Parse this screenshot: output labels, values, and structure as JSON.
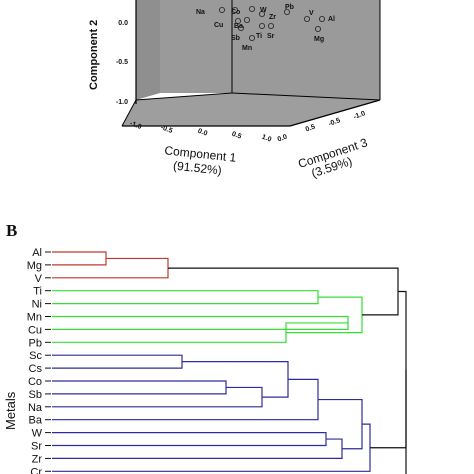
{
  "chart_data": [
    {
      "type": "scatter",
      "title": "",
      "axes": {
        "component1_label": "Component 1",
        "component1_pct": "(91.52%)",
        "component2_label": "Component 2",
        "component3_label": "Component 3",
        "component3_pct": "(3.59%)"
      },
      "y_ticks": [
        "0.0",
        "-0.5",
        "-1.0"
      ],
      "x1_ticks": [
        "-1.0",
        "-0.5",
        "0.0",
        "0.5",
        "1.0"
      ],
      "x3_ticks": [
        "0.0",
        "0.5",
        "1.0"
      ],
      "x3_ticks_left": [
        "-0.5",
        "-1.0"
      ],
      "points": [
        {
          "label": "Na"
        },
        {
          "label": "Co"
        },
        {
          "label": "W"
        },
        {
          "label": "Zr"
        },
        {
          "label": "Pb"
        },
        {
          "label": "V"
        },
        {
          "label": "Al"
        },
        {
          "label": "Mg"
        },
        {
          "label": "Cu"
        },
        {
          "label": "Ba"
        },
        {
          "label": "Sb"
        },
        {
          "label": "Ti"
        },
        {
          "label": "Sr"
        },
        {
          "label": "Mn"
        }
      ]
    },
    {
      "type": "dendrogram",
      "panel_label": "B",
      "ylabel": "Metals",
      "leaves": [
        "Al",
        "Mg",
        "V",
        "Ti",
        "Ni",
        "Mn",
        "Cu",
        "Pb",
        "Sc",
        "Cs",
        "Co",
        "Sb",
        "Na",
        "Ba",
        "W",
        "Sr",
        "Zr",
        "Cr"
      ],
      "clusters": [
        {
          "color": "#c0392b",
          "members": [
            "Al",
            "Mg",
            "V"
          ]
        },
        {
          "color": "#33e033",
          "members": [
            "Ti",
            "Ni",
            "Mn",
            "Cu",
            "Pb"
          ]
        },
        {
          "color": "#2c2c9a",
          "members": [
            "Sc",
            "Cs",
            "Co",
            "Sb",
            "Na",
            "Ba",
            "W",
            "Sr",
            "Zr",
            "Cr"
          ]
        }
      ]
    }
  ]
}
